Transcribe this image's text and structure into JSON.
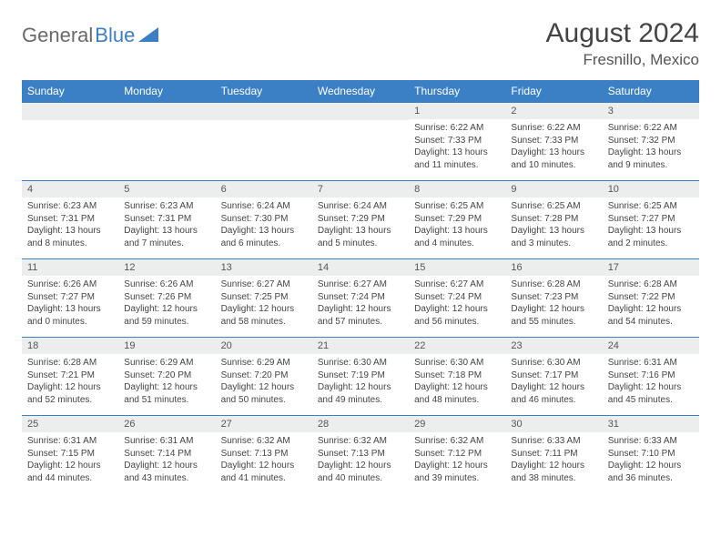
{
  "logo": {
    "text1": "General",
    "text2": "Blue"
  },
  "header": {
    "month": "August 2024",
    "location": "Fresnillo, Mexico"
  },
  "colors": {
    "header_bg": "#3b7fc4",
    "header_text": "#ffffff",
    "daynum_bg": "#eceeee",
    "row_border": "#3b7fc4",
    "body_text": "#444444"
  },
  "weekdays": [
    "Sunday",
    "Monday",
    "Tuesday",
    "Wednesday",
    "Thursday",
    "Friday",
    "Saturday"
  ],
  "weeks": [
    [
      null,
      null,
      null,
      null,
      {
        "n": "1",
        "sunrise": "6:22 AM",
        "sunset": "7:33 PM",
        "daylight": "13 hours and 11 minutes."
      },
      {
        "n": "2",
        "sunrise": "6:22 AM",
        "sunset": "7:33 PM",
        "daylight": "13 hours and 10 minutes."
      },
      {
        "n": "3",
        "sunrise": "6:22 AM",
        "sunset": "7:32 PM",
        "daylight": "13 hours and 9 minutes."
      }
    ],
    [
      {
        "n": "4",
        "sunrise": "6:23 AM",
        "sunset": "7:31 PM",
        "daylight": "13 hours and 8 minutes."
      },
      {
        "n": "5",
        "sunrise": "6:23 AM",
        "sunset": "7:31 PM",
        "daylight": "13 hours and 7 minutes."
      },
      {
        "n": "6",
        "sunrise": "6:24 AM",
        "sunset": "7:30 PM",
        "daylight": "13 hours and 6 minutes."
      },
      {
        "n": "7",
        "sunrise": "6:24 AM",
        "sunset": "7:29 PM",
        "daylight": "13 hours and 5 minutes."
      },
      {
        "n": "8",
        "sunrise": "6:25 AM",
        "sunset": "7:29 PM",
        "daylight": "13 hours and 4 minutes."
      },
      {
        "n": "9",
        "sunrise": "6:25 AM",
        "sunset": "7:28 PM",
        "daylight": "13 hours and 3 minutes."
      },
      {
        "n": "10",
        "sunrise": "6:25 AM",
        "sunset": "7:27 PM",
        "daylight": "13 hours and 2 minutes."
      }
    ],
    [
      {
        "n": "11",
        "sunrise": "6:26 AM",
        "sunset": "7:27 PM",
        "daylight": "13 hours and 0 minutes."
      },
      {
        "n": "12",
        "sunrise": "6:26 AM",
        "sunset": "7:26 PM",
        "daylight": "12 hours and 59 minutes."
      },
      {
        "n": "13",
        "sunrise": "6:27 AM",
        "sunset": "7:25 PM",
        "daylight": "12 hours and 58 minutes."
      },
      {
        "n": "14",
        "sunrise": "6:27 AM",
        "sunset": "7:24 PM",
        "daylight": "12 hours and 57 minutes."
      },
      {
        "n": "15",
        "sunrise": "6:27 AM",
        "sunset": "7:24 PM",
        "daylight": "12 hours and 56 minutes."
      },
      {
        "n": "16",
        "sunrise": "6:28 AM",
        "sunset": "7:23 PM",
        "daylight": "12 hours and 55 minutes."
      },
      {
        "n": "17",
        "sunrise": "6:28 AM",
        "sunset": "7:22 PM",
        "daylight": "12 hours and 54 minutes."
      }
    ],
    [
      {
        "n": "18",
        "sunrise": "6:28 AM",
        "sunset": "7:21 PM",
        "daylight": "12 hours and 52 minutes."
      },
      {
        "n": "19",
        "sunrise": "6:29 AM",
        "sunset": "7:20 PM",
        "daylight": "12 hours and 51 minutes."
      },
      {
        "n": "20",
        "sunrise": "6:29 AM",
        "sunset": "7:20 PM",
        "daylight": "12 hours and 50 minutes."
      },
      {
        "n": "21",
        "sunrise": "6:30 AM",
        "sunset": "7:19 PM",
        "daylight": "12 hours and 49 minutes."
      },
      {
        "n": "22",
        "sunrise": "6:30 AM",
        "sunset": "7:18 PM",
        "daylight": "12 hours and 48 minutes."
      },
      {
        "n": "23",
        "sunrise": "6:30 AM",
        "sunset": "7:17 PM",
        "daylight": "12 hours and 46 minutes."
      },
      {
        "n": "24",
        "sunrise": "6:31 AM",
        "sunset": "7:16 PM",
        "daylight": "12 hours and 45 minutes."
      }
    ],
    [
      {
        "n": "25",
        "sunrise": "6:31 AM",
        "sunset": "7:15 PM",
        "daylight": "12 hours and 44 minutes."
      },
      {
        "n": "26",
        "sunrise": "6:31 AM",
        "sunset": "7:14 PM",
        "daylight": "12 hours and 43 minutes."
      },
      {
        "n": "27",
        "sunrise": "6:32 AM",
        "sunset": "7:13 PM",
        "daylight": "12 hours and 41 minutes."
      },
      {
        "n": "28",
        "sunrise": "6:32 AM",
        "sunset": "7:13 PM",
        "daylight": "12 hours and 40 minutes."
      },
      {
        "n": "29",
        "sunrise": "6:32 AM",
        "sunset": "7:12 PM",
        "daylight": "12 hours and 39 minutes."
      },
      {
        "n": "30",
        "sunrise": "6:33 AM",
        "sunset": "7:11 PM",
        "daylight": "12 hours and 38 minutes."
      },
      {
        "n": "31",
        "sunrise": "6:33 AM",
        "sunset": "7:10 PM",
        "daylight": "12 hours and 36 minutes."
      }
    ]
  ],
  "labels": {
    "sunrise": "Sunrise:",
    "sunset": "Sunset:",
    "daylight": "Daylight:"
  }
}
